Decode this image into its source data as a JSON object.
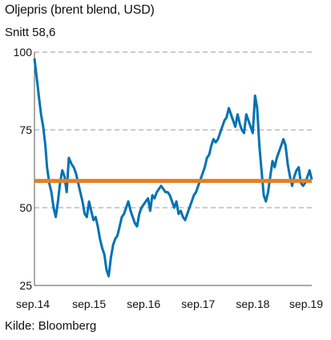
{
  "chart_data": {
    "type": "line",
    "title": "Oljepris (brent blend, USD)",
    "subtitle": "Snitt 58,6",
    "source": "Kilde: Bloomberg",
    "ylim": [
      25,
      100
    ],
    "yticks": [
      25,
      50,
      75,
      100
    ],
    "xlim": [
      2014.67,
      2019.75
    ],
    "xticks": [
      {
        "value": 2014.67,
        "label": "sep.14"
      },
      {
        "value": 2015.67,
        "label": "sep.15"
      },
      {
        "value": 2016.67,
        "label": "sep.16"
      },
      {
        "value": 2017.67,
        "label": "sep.17"
      },
      {
        "value": 2018.67,
        "label": "sep.18"
      },
      {
        "value": 2019.67,
        "label": "sep.19"
      }
    ],
    "grid": "horizontal-dashed",
    "average": 58.6,
    "colors": {
      "series": "#0072b2",
      "average": "#e67e22",
      "grid": "#999999"
    },
    "series": [
      {
        "x": [
          2014.67,
          2014.71,
          2014.75,
          2014.79,
          2014.83,
          2014.87,
          2014.9,
          2014.94,
          2014.98,
          2015.02,
          2015.06,
          2015.1,
          2015.14,
          2015.18,
          2015.22,
          2015.26,
          2015.3,
          2015.35,
          2015.39,
          2015.43,
          2015.47,
          2015.51,
          2015.55,
          2015.59,
          2015.63,
          2015.67,
          2015.71,
          2015.75,
          2015.79,
          2015.83,
          2015.87,
          2015.91,
          2015.95,
          2015.99,
          2016.03,
          2016.07,
          2016.11,
          2016.15,
          2016.19,
          2016.23,
          2016.27,
          2016.31,
          2016.35,
          2016.39,
          2016.43,
          2016.47,
          2016.51,
          2016.55,
          2016.59,
          2016.63,
          2016.67,
          2016.71,
          2016.75,
          2016.79,
          2016.83,
          2016.87,
          2016.91,
          2016.95,
          2016.99,
          2017.03,
          2017.07,
          2017.11,
          2017.15,
          2017.19,
          2017.23,
          2017.27,
          2017.31,
          2017.35,
          2017.39,
          2017.43,
          2017.47,
          2017.51,
          2017.55,
          2017.59,
          2017.63,
          2017.67,
          2017.71,
          2017.75,
          2017.79,
          2017.83,
          2017.87,
          2017.91,
          2017.95,
          2017.99,
          2018.03,
          2018.07,
          2018.11,
          2018.15,
          2018.19,
          2018.23,
          2018.27,
          2018.31,
          2018.35,
          2018.39,
          2018.43,
          2018.47,
          2018.51,
          2018.55,
          2018.59,
          2018.63,
          2018.67,
          2018.71,
          2018.75,
          2018.79,
          2018.83,
          2018.87,
          2018.91,
          2018.95,
          2018.99,
          2019.03,
          2019.07,
          2019.11,
          2019.15,
          2019.19,
          2019.23,
          2019.27,
          2019.31,
          2019.35,
          2019.39,
          2019.43,
          2019.47,
          2019.51,
          2019.55,
          2019.59,
          2019.63,
          2019.67,
          2019.71,
          2019.75
        ],
        "y": [
          98,
          92,
          86,
          80,
          76,
          70,
          63,
          58,
          55,
          50,
          47,
          52,
          58,
          62,
          60,
          55,
          66,
          64,
          63,
          61,
          58,
          55,
          52,
          48,
          47,
          52,
          49,
          46,
          47,
          44,
          40,
          37,
          35,
          30,
          28,
          34,
          38,
          40,
          41,
          44,
          47,
          48,
          50,
          52,
          49,
          47,
          45,
          44,
          48,
          50,
          51,
          52,
          53,
          49,
          54,
          53,
          55,
          56,
          57,
          56,
          55,
          55,
          54,
          52,
          50,
          52,
          48,
          49,
          47,
          46,
          48,
          50,
          52,
          54,
          55,
          57,
          59,
          61,
          63,
          66,
          67,
          70,
          72,
          71,
          72,
          74,
          76,
          78,
          79,
          82,
          80,
          78,
          76,
          80,
          77,
          75,
          74,
          80,
          78,
          76,
          74,
          86,
          82,
          70,
          62,
          54,
          52,
          55,
          60,
          65,
          63,
          66,
          68,
          70,
          72,
          70,
          64,
          60,
          57,
          60,
          62,
          63,
          58,
          57,
          58,
          60,
          62,
          59
        ]
      }
    ]
  }
}
